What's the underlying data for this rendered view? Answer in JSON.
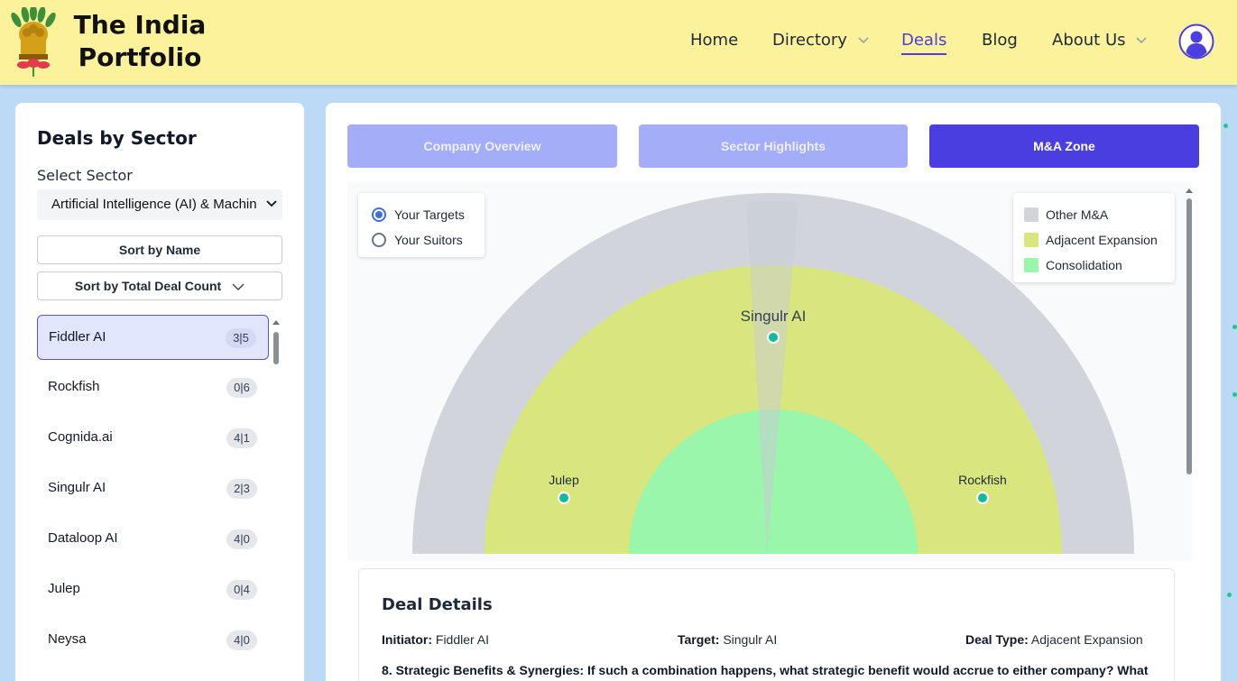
{
  "header": {
    "brand_line1": "The India",
    "brand_line2": "Portfolio",
    "logo_icon": "lion-capital-emblem-icon",
    "nav": [
      {
        "label": "Home",
        "has_dropdown": false,
        "active": false
      },
      {
        "label": "Directory",
        "has_dropdown": true,
        "active": false
      },
      {
        "label": "Deals",
        "has_dropdown": false,
        "active": true
      },
      {
        "label": "Blog",
        "has_dropdown": false,
        "active": false
      },
      {
        "label": "About Us",
        "has_dropdown": true,
        "active": false
      }
    ],
    "avatar_icon": "user-avatar-icon",
    "accent_color": "#4b3fe0",
    "background_color": "#fcf29c"
  },
  "sidebar": {
    "title": "Deals by Sector",
    "select_label": "Select Sector",
    "selected_sector": "Artificial Intelligence (AI) & Machin",
    "sort_by_name": "Sort by Name",
    "sort_by_count": "Sort by Total Deal Count",
    "companies": [
      {
        "name": "Fiddler AI",
        "count": "3|5",
        "active": true
      },
      {
        "name": "Rockfish",
        "count": "0|6",
        "active": false
      },
      {
        "name": "Cognida.ai",
        "count": "4|1",
        "active": false
      },
      {
        "name": "Singulr AI",
        "count": "2|3",
        "active": false
      },
      {
        "name": "Dataloop AI",
        "count": "4|0",
        "active": false
      },
      {
        "name": "Julep",
        "count": "0|4",
        "active": false
      },
      {
        "name": "Neysa",
        "count": "4|0",
        "active": false
      }
    ]
  },
  "tabs": [
    {
      "label": "Company Overview",
      "active": false
    },
    {
      "label": "Sector Highlights",
      "active": false
    },
    {
      "label": "M&A Zone",
      "active": true
    }
  ],
  "mode_options": [
    {
      "label": "Your Targets",
      "selected": true
    },
    {
      "label": "Your Suitors",
      "selected": false
    }
  ],
  "legend": [
    {
      "label": "Other M&A",
      "color": "#d1d5db"
    },
    {
      "label": "Adjacent Expansion",
      "color": "#d9e67d"
    },
    {
      "label": "Consolidation",
      "color": "#99f6ab"
    }
  ],
  "zone_chart": {
    "points": [
      {
        "label": "Singulr AI",
        "zone": "Adjacent Expansion",
        "highlighted": true
      },
      {
        "label": "Julep",
        "zone": "Adjacent Expansion",
        "highlighted": false
      },
      {
        "label": "Rockfish",
        "zone": "Adjacent Expansion",
        "highlighted": false
      }
    ],
    "point_color": "#14b89a"
  },
  "deal_details": {
    "title": "Deal Details",
    "initiator_label": "Initiator:",
    "initiator": "Fiddler AI",
    "target_label": "Target:",
    "target": "Singulr AI",
    "deal_type_label": "Deal Type:",
    "deal_type": "Adjacent Expansion",
    "question": "8. Strategic Benefits & Synergies: If such a combination happens, what strategic benefit would accrue to either company? What"
  }
}
